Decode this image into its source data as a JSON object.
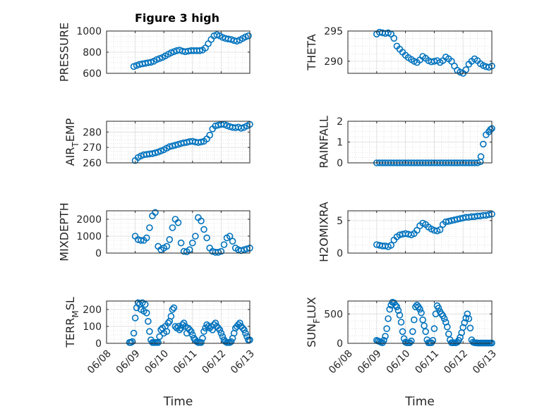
{
  "figure": {
    "title": "Figure 3 high",
    "marker_color": "#0072BD",
    "axis_color": "#262626"
  },
  "chart_data": [
    {
      "type": "scatter",
      "id": "pressure",
      "ylabel": "PRESSURE",
      "ylim": [
        600,
        1000
      ],
      "yticks": [
        600,
        800,
        1000
      ],
      "ytick_labels": [
        "600",
        "800",
        "1000"
      ],
      "xlim": [
        0,
        5
      ],
      "xticks": [
        0,
        1,
        2,
        3,
        4,
        5
      ],
      "xtick_labels": [],
      "grid": true,
      "x": [
        0.95,
        1.05,
        1.15,
        1.25,
        1.35,
        1.45,
        1.55,
        1.65,
        1.75,
        1.85,
        1.95,
        2.05,
        2.15,
        2.25,
        2.35,
        2.45,
        2.55,
        2.65,
        2.75,
        2.85,
        2.95,
        3.05,
        3.15,
        3.25,
        3.35,
        3.45,
        3.55,
        3.65,
        3.75,
        3.85,
        3.95,
        4.05,
        4.15,
        4.25,
        4.35,
        4.45,
        4.55,
        4.65,
        4.75,
        4.85,
        4.95
      ],
      "y": [
        665,
        675,
        685,
        690,
        695,
        700,
        705,
        715,
        730,
        740,
        750,
        765,
        780,
        795,
        805,
        815,
        820,
        810,
        805,
        810,
        815,
        815,
        815,
        815,
        820,
        840,
        880,
        920,
        955,
        965,
        955,
        940,
        930,
        925,
        920,
        910,
        905,
        915,
        930,
        945,
        955
      ]
    },
    {
      "type": "scatter",
      "id": "theta",
      "ylabel": "THETA",
      "ylim": [
        288,
        295
      ],
      "yticks": [
        290,
        295
      ],
      "ytick_labels": [
        "290",
        "295"
      ],
      "xlim": [
        0,
        5
      ],
      "xticks": [
        0,
        1,
        2,
        3,
        4,
        5
      ],
      "xtick_labels": [],
      "grid": true,
      "x": [
        1.0,
        1.1,
        1.2,
        1.3,
        1.4,
        1.5,
        1.6,
        1.7,
        1.8,
        1.9,
        2.0,
        2.1,
        2.2,
        2.3,
        2.4,
        2.5,
        2.6,
        2.7,
        2.8,
        2.9,
        3.0,
        3.1,
        3.2,
        3.3,
        3.4,
        3.5,
        3.6,
        3.7,
        3.8,
        3.9,
        4.0,
        4.1,
        4.2,
        4.3,
        4.4,
        4.5,
        4.6,
        4.7,
        4.8,
        4.9,
        5.0
      ],
      "y": [
        294.5,
        294.8,
        294.7,
        294.6,
        294.7,
        294.5,
        293.8,
        292.5,
        292.0,
        291.5,
        291.0,
        290.6,
        290.3,
        290.0,
        289.8,
        290.2,
        290.8,
        290.5,
        290.1,
        289.9,
        290.0,
        290.1,
        289.8,
        290.1,
        290.7,
        290.4,
        290.0,
        289.2,
        288.5,
        288.2,
        288.0,
        288.6,
        289.5,
        290.0,
        290.4,
        290.1,
        289.6,
        289.3,
        289.1,
        289.0,
        289.2
      ]
    },
    {
      "type": "scatter",
      "id": "air_temp",
      "ylabel": "AIR",
      "ylabel_sub": "T",
      "ylabel_rest": "EMP",
      "ylim": [
        260,
        287
      ],
      "yticks": [
        260,
        270,
        280
      ],
      "ytick_labels": [
        "260",
        "270",
        "280"
      ],
      "xlim": [
        0,
        5
      ],
      "xticks": [
        0,
        1,
        2,
        3,
        4,
        5
      ],
      "xtick_labels": [],
      "grid": true,
      "x": [
        1.0,
        1.1,
        1.2,
        1.3,
        1.4,
        1.5,
        1.6,
        1.7,
        1.8,
        1.9,
        2.0,
        2.1,
        2.2,
        2.3,
        2.4,
        2.5,
        2.6,
        2.7,
        2.8,
        2.9,
        3.0,
        3.1,
        3.2,
        3.3,
        3.4,
        3.5,
        3.6,
        3.7,
        3.8,
        3.9,
        4.0,
        4.1,
        4.2,
        4.3,
        4.4,
        4.5,
        4.6,
        4.7,
        4.8,
        4.9,
        5.0
      ],
      "y": [
        261.5,
        263.5,
        264.5,
        265.2,
        265.5,
        265.8,
        266.0,
        266.5,
        267.0,
        267.8,
        268.5,
        269.5,
        270.5,
        271.0,
        271.5,
        272.0,
        272.6,
        273.0,
        273.3,
        273.8,
        274.0,
        273.5,
        273.2,
        273.5,
        274.0,
        275.5,
        278.0,
        282.0,
        284.0,
        284.5,
        285.0,
        285.0,
        284.2,
        283.5,
        283.0,
        282.8,
        283.2,
        282.5,
        283.0,
        284.0,
        285.0
      ]
    },
    {
      "type": "scatter",
      "id": "rainfall",
      "ylabel": "RAINFALL",
      "ylim": [
        0,
        2
      ],
      "yticks": [
        0,
        1,
        2
      ],
      "ytick_labels": [
        "0",
        "1",
        "2"
      ],
      "xlim": [
        0,
        5
      ],
      "xticks": [
        0,
        1,
        2,
        3,
        4,
        5
      ],
      "xtick_labels": [],
      "grid": true,
      "x": [
        1.0,
        1.1,
        1.2,
        1.3,
        1.4,
        1.5,
        1.6,
        1.7,
        1.8,
        1.9,
        2.0,
        2.1,
        2.2,
        2.3,
        2.4,
        2.5,
        2.6,
        2.7,
        2.8,
        2.9,
        3.0,
        3.1,
        3.2,
        3.3,
        3.4,
        3.5,
        3.6,
        3.7,
        3.8,
        3.9,
        4.0,
        4.1,
        4.2,
        4.3,
        4.4,
        4.5,
        4.6,
        4.62,
        4.7,
        4.8,
        4.9,
        4.95,
        5.0
      ],
      "y": [
        0,
        0,
        0,
        0,
        0,
        0,
        0,
        0,
        0,
        0,
        0,
        0,
        0,
        0,
        0,
        0,
        0,
        0,
        0,
        0,
        0,
        0,
        0,
        0,
        0,
        0,
        0,
        0,
        0,
        0,
        0,
        0,
        0,
        0,
        0,
        0,
        0.05,
        0.3,
        0.9,
        1.35,
        1.5,
        1.6,
        1.65
      ]
    },
    {
      "type": "scatter",
      "id": "mixdepth",
      "ylabel": "MIXDEPTH",
      "ylim": [
        0,
        2500
      ],
      "yticks": [
        0,
        1000,
        2000
      ],
      "ytick_labels": [
        "0",
        "1000",
        "2000"
      ],
      "xlim": [
        0,
        5
      ],
      "xticks": [
        0,
        1,
        2,
        3,
        4,
        5
      ],
      "xtick_labels": [],
      "grid": true,
      "x": [
        1.0,
        1.1,
        1.2,
        1.3,
        1.4,
        1.5,
        1.6,
        1.7,
        1.8,
        1.9,
        2.0,
        2.1,
        2.2,
        2.3,
        2.4,
        2.5,
        2.6,
        2.7,
        2.8,
        2.9,
        3.0,
        3.1,
        3.2,
        3.3,
        3.4,
        3.5,
        3.6,
        3.7,
        3.8,
        3.9,
        4.0,
        4.1,
        4.2,
        4.3,
        4.4,
        4.5,
        4.6,
        4.7,
        4.8,
        4.9,
        5.0
      ],
      "y": [
        1000,
        800,
        750,
        750,
        900,
        1500,
        2200,
        2400,
        400,
        200,
        300,
        400,
        800,
        1500,
        2000,
        1800,
        600,
        100,
        80,
        200,
        600,
        1000,
        2100,
        1900,
        1400,
        900,
        300,
        100,
        50,
        50,
        100,
        500,
        900,
        1000,
        700,
        300,
        200,
        150,
        200,
        250,
        300
      ]
    },
    {
      "type": "scatter",
      "id": "h2omixra",
      "ylabel": "H2OMIXRA",
      "ylim": [
        0,
        6.5
      ],
      "yticks": [
        0,
        5
      ],
      "ytick_labels": [
        "0",
        "5"
      ],
      "xlim": [
        0,
        5
      ],
      "xticks": [
        0,
        1,
        2,
        3,
        4,
        5
      ],
      "xtick_labels": [],
      "grid": true,
      "x": [
        1.0,
        1.1,
        1.2,
        1.3,
        1.4,
        1.5,
        1.6,
        1.7,
        1.8,
        1.9,
        2.0,
        2.1,
        2.2,
        2.3,
        2.4,
        2.5,
        2.6,
        2.7,
        2.8,
        2.9,
        3.0,
        3.1,
        3.2,
        3.3,
        3.4,
        3.5,
        3.6,
        3.7,
        3.8,
        3.9,
        4.0,
        4.1,
        4.2,
        4.3,
        4.4,
        4.5,
        4.6,
        4.7,
        4.8,
        4.9,
        5.0
      ],
      "y": [
        1.3,
        1.2,
        1.1,
        1.1,
        1.0,
        1.2,
        2.0,
        2.5,
        2.8,
        2.9,
        3.0,
        2.9,
        2.8,
        3.0,
        3.5,
        4.2,
        4.6,
        4.4,
        4.0,
        3.7,
        3.5,
        3.4,
        3.6,
        4.4,
        4.8,
        4.9,
        5.0,
        5.1,
        5.2,
        5.3,
        5.4,
        5.5,
        5.5,
        5.6,
        5.6,
        5.7,
        5.7,
        5.8,
        5.8,
        5.9,
        6.0
      ]
    },
    {
      "type": "scatter",
      "id": "terr_msl",
      "ylabel": "TERR",
      "ylabel_sub": "M",
      "ylabel_rest": "SL",
      "ylim": [
        0,
        250
      ],
      "yticks": [
        0,
        100,
        200
      ],
      "ytick_labels": [
        "0",
        "100",
        "200"
      ],
      "xlim": [
        0,
        5
      ],
      "xticks": [
        0,
        1,
        2,
        3,
        4,
        5
      ],
      "xtick_labels": [
        "06/08",
        "06/09",
        "06/10",
        "06/11",
        "06/12",
        "06/13"
      ],
      "xlabel": "Time",
      "grid": true,
      "x": [
        0.8,
        0.85,
        0.9,
        0.95,
        1.0,
        1.05,
        1.1,
        1.15,
        1.2,
        1.25,
        1.3,
        1.35,
        1.4,
        1.45,
        1.5,
        1.55,
        1.6,
        1.65,
        1.7,
        1.75,
        1.8,
        1.85,
        1.9,
        1.95,
        2.0,
        2.05,
        2.1,
        2.15,
        2.2,
        2.25,
        2.3,
        2.35,
        2.4,
        2.45,
        2.5,
        2.55,
        2.6,
        2.65,
        2.7,
        2.75,
        2.8,
        2.85,
        2.9,
        2.95,
        3.0,
        3.05,
        3.1,
        3.15,
        3.2,
        3.25,
        3.3,
        3.35,
        3.4,
        3.45,
        3.5,
        3.55,
        3.6,
        3.65,
        3.7,
        3.75,
        3.8,
        3.85,
        3.9,
        3.95,
        4.0,
        4.05,
        4.1,
        4.15,
        4.2,
        4.25,
        4.3,
        4.35,
        4.4,
        4.45,
        4.5,
        4.55,
        4.6,
        4.65,
        4.7,
        4.75,
        4.8,
        4.85,
        4.9,
        4.95,
        5.0
      ],
      "y": [
        5,
        5,
        10,
        60,
        150,
        210,
        240,
        230,
        200,
        240,
        190,
        230,
        180,
        130,
        70,
        20,
        5,
        5,
        5,
        5,
        5,
        40,
        80,
        90,
        60,
        100,
        70,
        120,
        130,
        160,
        200,
        210,
        100,
        90,
        100,
        80,
        90,
        110,
        120,
        100,
        60,
        90,
        80,
        70,
        50,
        30,
        20,
        10,
        5,
        5,
        5,
        30,
        70,
        90,
        110,
        100,
        90,
        100,
        80,
        110,
        120,
        100,
        90,
        80,
        60,
        40,
        20,
        10,
        5,
        5,
        5,
        10,
        30,
        60,
        90,
        100,
        110,
        120,
        100,
        90,
        80,
        60,
        40,
        20,
        20
      ]
    },
    {
      "type": "scatter",
      "id": "sun_flux",
      "ylabel": "SUN",
      "ylabel_sub": "F",
      "ylabel_rest": "LUX",
      "ylim": [
        0,
        720
      ],
      "yticks": [
        0,
        500
      ],
      "ytick_labels": [
        "0",
        "500"
      ],
      "xlim": [
        0,
        5
      ],
      "xticks": [
        0,
        1,
        2,
        3,
        4,
        5
      ],
      "xtick_labels": [
        "06/08",
        "06/09",
        "06/10",
        "06/11",
        "06/12",
        "06/13"
      ],
      "xlabel": "Time",
      "grid": true,
      "x": [
        1.0,
        1.05,
        1.1,
        1.15,
        1.2,
        1.25,
        1.3,
        1.35,
        1.4,
        1.45,
        1.5,
        1.55,
        1.6,
        1.65,
        1.7,
        1.75,
        1.8,
        1.85,
        1.9,
        1.95,
        2.0,
        2.05,
        2.1,
        2.15,
        2.2,
        2.25,
        2.3,
        2.35,
        2.4,
        2.45,
        2.5,
        2.55,
        2.6,
        2.65,
        2.7,
        2.75,
        2.8,
        2.85,
        2.9,
        2.95,
        3.0,
        3.05,
        3.1,
        3.15,
        3.2,
        3.25,
        3.3,
        3.35,
        3.4,
        3.45,
        3.5,
        3.55,
        3.6,
        3.65,
        3.7,
        3.75,
        3.8,
        3.85,
        3.9,
        3.95,
        4.0,
        4.05,
        4.1,
        4.15,
        4.2,
        4.25,
        4.3,
        4.35,
        4.4,
        4.45,
        4.5,
        4.55,
        4.6,
        4.65,
        4.7,
        4.75,
        4.8,
        4.85,
        4.9,
        4.95,
        5.0
      ],
      "y": [
        50,
        40,
        30,
        20,
        10,
        50,
        120,
        250,
        420,
        580,
        650,
        700,
        690,
        650,
        620,
        560,
        480,
        360,
        200,
        80,
        20,
        10,
        10,
        10,
        40,
        200,
        400,
        620,
        650,
        620,
        580,
        520,
        400,
        300,
        200,
        60,
        10,
        10,
        10,
        50,
        250,
        500,
        640,
        600,
        540,
        500,
        470,
        420,
        360,
        280,
        160,
        60,
        10,
        10,
        10,
        10,
        20,
        50,
        100,
        180,
        270,
        350,
        430,
        500,
        420,
        260,
        60,
        20,
        10,
        10,
        5,
        5,
        5,
        5,
        5,
        5,
        5,
        5,
        5,
        5,
        5
      ]
    }
  ]
}
